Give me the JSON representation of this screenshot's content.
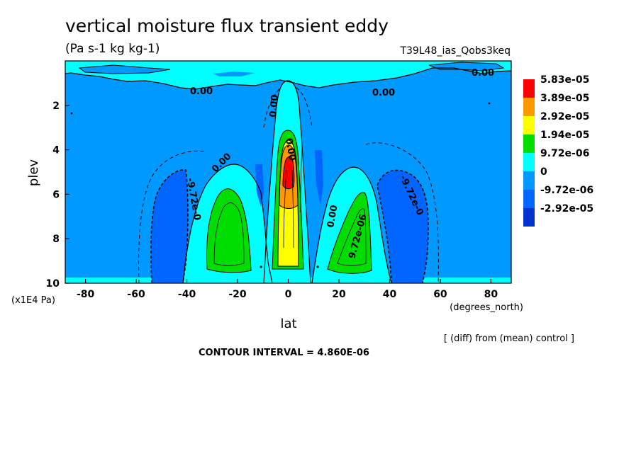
{
  "chart_data": {
    "type": "contour",
    "title": "vertical moisture flux transient eddy",
    "units": "(Pa s-1 kg kg-1)",
    "run_label": "T39L48_ias_Qobs3keq",
    "xlabel": "lat",
    "xunits": "(degrees_north)",
    "ylabel": "plev",
    "yunits": "(x1E4 Pa)",
    "xlim": [
      -88,
      88
    ],
    "ylim": [
      10,
      0
    ],
    "xticks": [
      "-80",
      "-60",
      "-40",
      "-20",
      "0",
      "20",
      "40",
      "60",
      "80"
    ],
    "yticks": [
      "2",
      "4",
      "6",
      "8",
      "10"
    ],
    "colorbar": {
      "labels": [
        "5.83e-05",
        "3.89e-05",
        "2.92e-05",
        "1.94e-05",
        "9.72e-06",
        "0",
        "-9.72e-06",
        "-2.92e-05"
      ],
      "colors": [
        "#ff0000",
        "#ff9900",
        "#ffff00",
        "#00dd00",
        "#00ffff",
        "#0099ff",
        "#0066ff",
        "#0033cc"
      ]
    },
    "contour_labels": [
      "0.00",
      "0.00",
      "0.00",
      "0.00",
      "0.00",
      "0.00",
      "-9.72e-0",
      "-9.72e-0",
      "9.72e-06",
      "0.00"
    ],
    "contour_interval_text": "CONTOUR INTERVAL = 4.860E-06",
    "diff_note": "[ (diff) from (mean) control ]"
  }
}
